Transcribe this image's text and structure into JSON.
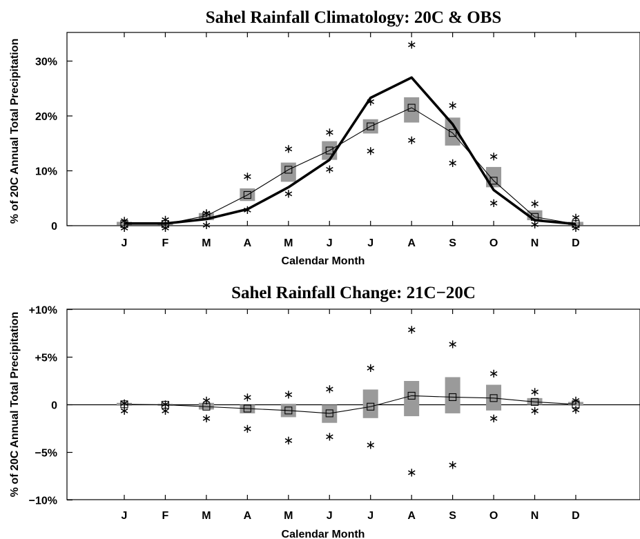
{
  "chart_data": [
    {
      "type": "line",
      "title": "Sahel Rainfall Climatology: 20C & OBS",
      "xlabel": "Calendar Month",
      "ylabel": "% of 20C Annual Total Precipitation",
      "categories": [
        "J",
        "F",
        "M",
        "A",
        "M",
        "J",
        "J",
        "A",
        "S",
        "O",
        "N",
        "D"
      ],
      "ylim": [
        0,
        35
      ],
      "y_ticks": [
        {
          "value": 0,
          "label": "0"
        },
        {
          "value": 10,
          "label": "10%"
        },
        {
          "value": 20,
          "label": "20%"
        },
        {
          "value": 30,
          "label": "30%"
        }
      ],
      "grid": false,
      "series": [
        {
          "role": "thick-line",
          "values": [
            0.4,
            0.4,
            1.2,
            3.0,
            7.0,
            12.0,
            23.3,
            27.0,
            18.5,
            6.5,
            1.0,
            0.3
          ]
        },
        {
          "role": "model-mean",
          "values": [
            0.3,
            0.3,
            1.8,
            5.6,
            10.2,
            13.7,
            18.1,
            21.5,
            16.9,
            8.2,
            1.6,
            0.3
          ]
        },
        {
          "role": "spread-low",
          "values": [
            0.1,
            0.1,
            1.0,
            4.5,
            8.0,
            12.0,
            16.8,
            18.8,
            14.6,
            7.0,
            1.0,
            0.1
          ]
        },
        {
          "role": "spread-high",
          "values": [
            0.7,
            0.6,
            2.3,
            6.8,
            11.5,
            15.4,
            19.4,
            23.4,
            19.7,
            10.7,
            2.8,
            0.7
          ]
        },
        {
          "role": "range-max",
          "values": [
            1.3,
            1.5,
            2.7,
            9.4,
            14.4,
            17.4,
            23.0,
            33.4,
            22.3,
            13.0,
            4.4,
            1.9
          ]
        },
        {
          "role": "range-min",
          "values": [
            0.0,
            0.0,
            0.5,
            3.3,
            6.2,
            10.7,
            14.0,
            16.0,
            11.8,
            4.5,
            0.6,
            0.0
          ]
        }
      ]
    },
    {
      "type": "line",
      "title": "Sahel Rainfall Change: 21C−20C",
      "xlabel": "Calendar Month",
      "ylabel": "% of 20C Annual Total Precipitation",
      "categories": [
        "J",
        "F",
        "M",
        "A",
        "M",
        "J",
        "J",
        "A",
        "S",
        "O",
        "N",
        "D"
      ],
      "ylim": [
        -10,
        10
      ],
      "y_ticks": [
        {
          "value": 10,
          "label": "+10%"
        },
        {
          "value": 5,
          "label": "+5%"
        },
        {
          "value": 0,
          "label": "0"
        },
        {
          "value": -5,
          "label": "−5%"
        },
        {
          "value": -10,
          "label": "−10%"
        }
      ],
      "grid": false,
      "zero_line": true,
      "series": [
        {
          "role": "model-mean",
          "values": [
            0.05,
            0.0,
            -0.2,
            -0.4,
            -0.6,
            -0.9,
            -0.2,
            0.95,
            0.8,
            0.7,
            0.3,
            0.05
          ]
        },
        {
          "role": "spread-low",
          "values": [
            -0.1,
            -0.1,
            -0.5,
            -0.9,
            -1.3,
            -1.9,
            -1.4,
            -1.2,
            -0.9,
            -0.6,
            0.0,
            -0.1
          ]
        },
        {
          "role": "spread-high",
          "values": [
            0.2,
            0.1,
            0.2,
            0.0,
            0.1,
            0.0,
            1.6,
            2.5,
            2.9,
            2.1,
            0.7,
            0.3
          ]
        },
        {
          "role": "range-max",
          "values": [
            0.4,
            0.3,
            0.7,
            1.0,
            1.3,
            1.9,
            4.1,
            8.1,
            6.6,
            3.5,
            1.6,
            0.7
          ]
        },
        {
          "role": "range-min",
          "values": [
            -0.4,
            -0.4,
            -1.2,
            -2.3,
            -3.5,
            -3.1,
            -4.0,
            -6.9,
            -6.1,
            -1.2,
            -0.4,
            -0.3
          ]
        }
      ]
    }
  ]
}
